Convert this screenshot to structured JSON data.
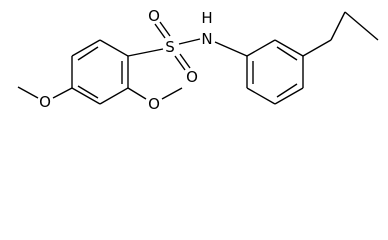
{
  "atoms": [
    {
      "label": "S"
    },
    {
      "label": "O"
    },
    {
      "label": "O"
    },
    {
      "label": "N"
    },
    {
      "label": "H"
    },
    {
      "label": "O"
    },
    {
      "label": "O"
    }
  ]
}
